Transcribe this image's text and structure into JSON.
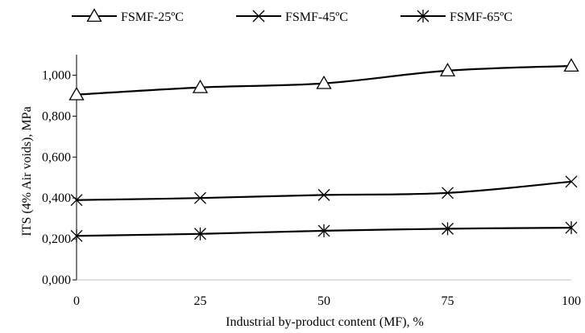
{
  "chart_data": {
    "type": "line",
    "title": "",
    "xlabel": "Industrial by-product content (MF), %",
    "ylabel": "ITS (4% Air voids), MPa",
    "x": [
      0,
      25,
      50,
      75,
      100
    ],
    "x_tick_labels": [
      "0",
      "25",
      "50",
      "75",
      "100"
    ],
    "xlim": [
      0,
      100
    ],
    "ylim": [
      0,
      1.1
    ],
    "y_ticks": [
      0,
      0.2,
      0.4,
      0.6,
      0.8,
      1.0
    ],
    "y_tick_labels": [
      "0,000",
      "0,200",
      "0,400",
      "0,600",
      "0,800",
      "1,000"
    ],
    "grid": false,
    "legend_position": "top",
    "series": [
      {
        "name": "FSMF-25ºC",
        "marker": "triangle",
        "values": [
          0.905,
          0.94,
          0.96,
          1.022,
          1.045
        ]
      },
      {
        "name": "FSMF-45ºC",
        "marker": "x",
        "values": [
          0.39,
          0.4,
          0.415,
          0.425,
          0.48
        ]
      },
      {
        "name": "FSMF-65ºC",
        "marker": "star",
        "values": [
          0.215,
          0.225,
          0.24,
          0.25,
          0.255
        ]
      }
    ],
    "colors": {
      "line": "#000000",
      "axis": "#000000"
    }
  }
}
